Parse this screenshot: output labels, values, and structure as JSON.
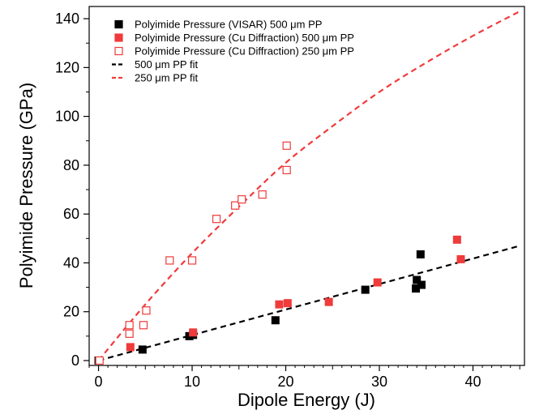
{
  "chart_data": {
    "type": "scatter",
    "title": "",
    "xlabel": "Dipole Energy (J)",
    "ylabel": "Polyimide Pressure (GPa)",
    "xlim": [
      -1,
      45.5
    ],
    "ylim": [
      -2,
      145
    ],
    "x_ticks": [
      0,
      10,
      20,
      30,
      40
    ],
    "x_tick_labels": [
      "0",
      "10",
      "20",
      "30",
      "40"
    ],
    "y_ticks": [
      0,
      20,
      40,
      60,
      80,
      100,
      120,
      140
    ],
    "y_tick_labels": [
      "0",
      "20",
      "40",
      "60",
      "80",
      "100",
      "120",
      "140"
    ],
    "grid": false,
    "legend_position": "top-left",
    "series": [
      {
        "name": "Polyimide Pressure (VISAR) 500 μm PP",
        "marker": "filled-square",
        "color": "#000000",
        "points": [
          {
            "x": 0,
            "y": 0
          },
          {
            "x": 4.7,
            "y": 4.5
          },
          {
            "x": 9.7,
            "y": 10
          },
          {
            "x": 10.1,
            "y": 10.5
          },
          {
            "x": 18.9,
            "y": 16.5
          },
          {
            "x": 28.5,
            "y": 29
          },
          {
            "x": 33.9,
            "y": 29.5
          },
          {
            "x": 34.0,
            "y": 33
          },
          {
            "x": 34.5,
            "y": 31
          },
          {
            "x": 34.4,
            "y": 43.5
          }
        ]
      },
      {
        "name": "Polyimide Pressure (Cu Diffraction) 500 μm PP",
        "marker": "filled-square",
        "color": "#ef3b3b",
        "points": [
          {
            "x": 3.4,
            "y": 5.5
          },
          {
            "x": 10.1,
            "y": 11.5
          },
          {
            "x": 19.3,
            "y": 23
          },
          {
            "x": 20.2,
            "y": 23.5
          },
          {
            "x": 24.6,
            "y": 24
          },
          {
            "x": 29.8,
            "y": 32
          },
          {
            "x": 38.3,
            "y": 49.5
          },
          {
            "x": 38.7,
            "y": 41.5
          }
        ]
      },
      {
        "name": "Polyimide Pressure (Cu Diffraction) 250 μm PP",
        "marker": "open-square",
        "color": "#ef3b3b",
        "points": [
          {
            "x": 0.1,
            "y": 0
          },
          {
            "x": 3.3,
            "y": 11
          },
          {
            "x": 3.3,
            "y": 14.5
          },
          {
            "x": 4.8,
            "y": 14.5
          },
          {
            "x": 5.1,
            "y": 20.5
          },
          {
            "x": 7.6,
            "y": 41
          },
          {
            "x": 10.0,
            "y": 41
          },
          {
            "x": 12.6,
            "y": 58
          },
          {
            "x": 14.6,
            "y": 63.5
          },
          {
            "x": 15.3,
            "y": 66
          },
          {
            "x": 17.5,
            "y": 68
          },
          {
            "x": 20.1,
            "y": 78
          },
          {
            "x": 20.1,
            "y": 88
          }
        ]
      },
      {
        "name": "500 μm PP fit",
        "marker": "dashed-line",
        "color": "#000000",
        "points": [
          {
            "x": 0,
            "y": 0
          },
          {
            "x": 45,
            "y": 47
          }
        ]
      },
      {
        "name": "250 μm PP fit",
        "marker": "dashed-line",
        "color": "#ef3b3b",
        "points": [
          {
            "x": 0,
            "y": 0
          },
          {
            "x": 5,
            "y": 23
          },
          {
            "x": 10,
            "y": 44
          },
          {
            "x": 15,
            "y": 63
          },
          {
            "x": 20,
            "y": 81
          },
          {
            "x": 25,
            "y": 96
          },
          {
            "x": 30,
            "y": 110
          },
          {
            "x": 35,
            "y": 122
          },
          {
            "x": 40,
            "y": 133
          },
          {
            "x": 45,
            "y": 143
          }
        ]
      }
    ],
    "legend": [
      {
        "label": "Polyimide Pressure (VISAR) 500 μm PP",
        "series": 0
      },
      {
        "label": "Polyimide Pressure (Cu Diffraction) 500 μm PP",
        "series": 1
      },
      {
        "label": "Polyimide Pressure (Cu Diffraction) 250 μm PP",
        "series": 2
      },
      {
        "label": "500 μm PP fit",
        "series": 3
      },
      {
        "label": "250 μm PP fit",
        "series": 4
      }
    ]
  }
}
